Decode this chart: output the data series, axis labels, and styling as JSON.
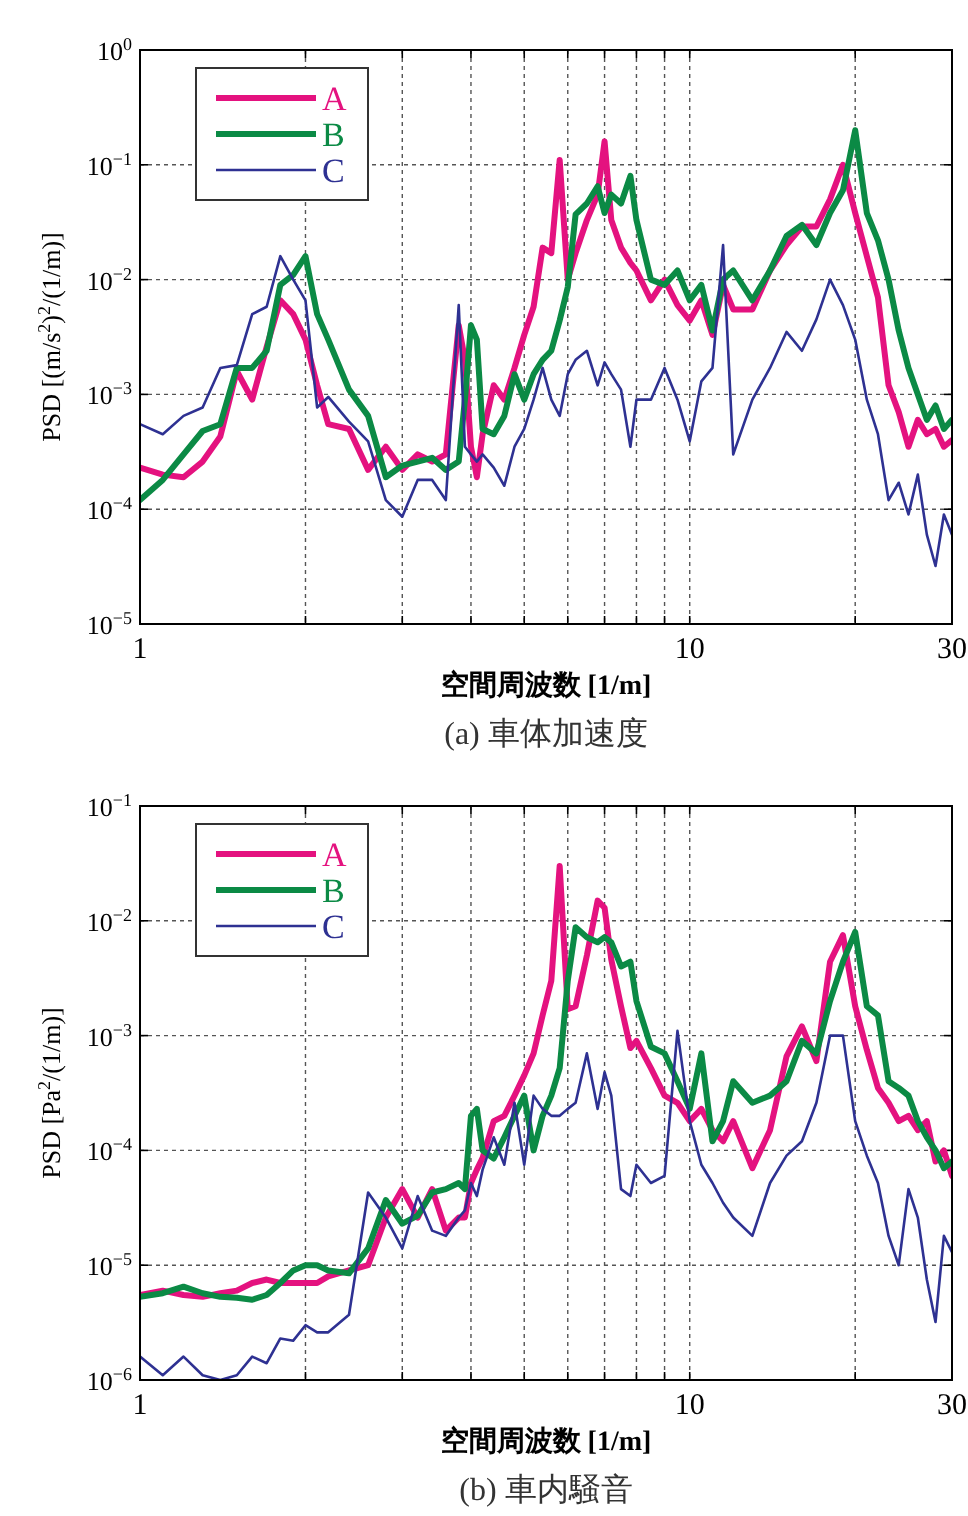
{
  "chart_data": [
    {
      "type": "line",
      "title": "(a) 車体加速度",
      "xlabel": "空間周波数 [1/m]",
      "ylabel": "PSD [(m/s$^{2}$)$^{2}$/(1/m)]",
      "log": "xy",
      "grid": true,
      "legend": "top left",
      "xlim": [
        1,
        30
      ],
      "ylim": [
        1e-05,
        1
      ],
      "xticks": [
        1,
        {
          "value": 2,
          "label": null
        },
        {
          "value": 3,
          "label": null
        },
        {
          "value": 4,
          "label": null
        },
        {
          "value": 5,
          "label": null
        },
        {
          "value": 6,
          "label": null
        },
        {
          "value": 7,
          "label": null
        },
        {
          "value": 8,
          "label": null
        },
        {
          "value": 9,
          "label": null
        },
        10,
        {
          "value": 20,
          "label": null
        },
        30
      ],
      "yticks": [
        {
          "value": 1e-05,
          "label": "10$^{−5}$"
        },
        {
          "value": 0.0001,
          "label": "10$^{−4}$"
        },
        {
          "value": 0.001,
          "label": "10$^{−3}$"
        },
        {
          "value": 0.01,
          "label": "10$^{−2}$"
        },
        {
          "value": 0.1,
          "label": "10$^{−1}$"
        },
        {
          "value": 1,
          "label": "10$^{0}$"
        }
      ],
      "x": [
        1,
        1.1,
        1.2,
        1.3,
        1.4,
        1.5,
        1.6,
        1.7,
        1.8,
        1.9,
        2,
        2.1,
        2.2,
        2.4,
        2.6,
        2.8,
        3,
        3.2,
        3.4,
        3.6,
        3.8,
        3.9,
        4,
        4.1,
        4.2,
        4.4,
        4.6,
        4.8,
        5,
        5.2,
        5.4,
        5.6,
        5.8,
        6,
        6.2,
        6.5,
        6.8,
        7,
        7.2,
        7.5,
        7.8,
        8,
        8.5,
        9,
        9.5,
        10,
        10.5,
        11,
        11.5,
        12,
        13,
        14,
        15,
        16,
        17,
        18,
        19,
        20,
        21,
        22,
        23,
        24,
        25,
        26,
        27,
        28,
        29,
        30
      ],
      "series": [
        {
          "name": "A",
          "color": "#e4127f",
          "values": [
            0.00023,
            0.0002,
            0.00019,
            0.00026,
            0.00043,
            0.0016,
            0.0009,
            0.0026,
            0.0066,
            0.005,
            0.003,
            0.0012,
            0.00055,
            0.0005,
            0.00022,
            0.00035,
            0.00022,
            0.0003,
            0.00026,
            0.0003,
            0.004,
            0.002,
            0.00035,
            0.00019,
            0.00045,
            0.0012,
            0.0009,
            0.0017,
            0.0033,
            0.0058,
            0.019,
            0.017,
            0.11,
            0.01,
            0.017,
            0.033,
            0.055,
            0.16,
            0.033,
            0.019,
            0.014,
            0.012,
            0.0066,
            0.01,
            0.006,
            0.0044,
            0.0066,
            0.0033,
            0.009,
            0.0055,
            0.0055,
            0.012,
            0.02,
            0.029,
            0.029,
            0.05,
            0.1,
            0.038,
            0.016,
            0.007,
            0.0012,
            0.0007,
            0.00035,
            0.0006,
            0.00045,
            0.0005,
            0.00035,
            0.0004
          ]
        },
        {
          "name": "B",
          "color": "#0b8a45",
          "values": [
            0.00012,
            0.00018,
            0.0003,
            0.00048,
            0.00055,
            0.0017,
            0.0017,
            0.0024,
            0.009,
            0.011,
            0.016,
            0.005,
            0.003,
            0.0011,
            0.00065,
            0.00019,
            0.00024,
            0.00026,
            0.00028,
            0.00022,
            0.00026,
            0.0009,
            0.004,
            0.003,
            0.0005,
            0.00045,
            0.00065,
            0.0015,
            0.0009,
            0.0015,
            0.002,
            0.0024,
            0.0044,
            0.0086,
            0.037,
            0.046,
            0.065,
            0.038,
            0.055,
            0.046,
            0.08,
            0.033,
            0.01,
            0.009,
            0.012,
            0.0066,
            0.009,
            0.0036,
            0.01,
            0.012,
            0.0066,
            0.012,
            0.024,
            0.03,
            0.02,
            0.038,
            0.06,
            0.2,
            0.038,
            0.022,
            0.01,
            0.0036,
            0.0017,
            0.001,
            0.0006,
            0.0008,
            0.0005,
            0.0006
          ]
        },
        {
          "name": "C",
          "color": "#2e3192",
          "values": [
            0.00055,
            0.00045,
            0.00065,
            0.00077,
            0.0017,
            0.0018,
            0.005,
            0.0058,
            0.016,
            0.01,
            0.0066,
            0.00077,
            0.00095,
            0.00058,
            0.00039,
            0.00012,
            8.6e-05,
            0.00018,
            0.00018,
            0.00012,
            0.006,
            0.00035,
            0.0003,
            0.00026,
            0.0003,
            0.00023,
            0.00016,
            0.00035,
            0.0005,
            0.0009,
            0.0017,
            0.0009,
            0.00065,
            0.0015,
            0.002,
            0.0024,
            0.0012,
            0.0019,
            0.0015,
            0.0011,
            0.00035,
            0.0009,
            0.0009,
            0.0017,
            0.0009,
            0.00039,
            0.0013,
            0.0017,
            0.02,
            0.0003,
            0.0009,
            0.0017,
            0.0035,
            0.0024,
            0.0045,
            0.01,
            0.006,
            0.003,
            0.0009,
            0.00045,
            0.00012,
            0.00017,
            9e-05,
            0.0002,
            6e-05,
            3.2e-05,
            9e-05,
            6e-05
          ]
        }
      ]
    },
    {
      "type": "line",
      "title": "(b) 車内騒音",
      "xlabel": "空間周波数 [1/m]",
      "ylabel": "PSD [Pa$^{2}$/(1/m)]",
      "log": "xy",
      "grid": true,
      "legend": "top left",
      "xlim": [
        1,
        30
      ],
      "ylim": [
        1e-06,
        0.1
      ],
      "xticks": [
        1,
        {
          "value": 2,
          "label": null
        },
        {
          "value": 3,
          "label": null
        },
        {
          "value": 4,
          "label": null
        },
        {
          "value": 5,
          "label": null
        },
        {
          "value": 6,
          "label": null
        },
        {
          "value": 7,
          "label": null
        },
        {
          "value": 8,
          "label": null
        },
        {
          "value": 9,
          "label": null
        },
        10,
        {
          "value": 20,
          "label": null
        },
        30
      ],
      "yticks": [
        {
          "value": 1e-06,
          "label": "10$^{−6}$"
        },
        {
          "value": 1e-05,
          "label": "10$^{−5}$"
        },
        {
          "value": 0.0001,
          "label": "10$^{−4}$"
        },
        {
          "value": 0.001,
          "label": "10$^{−3}$"
        },
        {
          "value": 0.01,
          "label": "10$^{−2}$"
        },
        {
          "value": 0.1,
          "label": "10$^{−1}$"
        }
      ],
      "x": [
        1,
        1.1,
        1.2,
        1.3,
        1.4,
        1.5,
        1.6,
        1.7,
        1.8,
        1.9,
        2,
        2.1,
        2.2,
        2.4,
        2.6,
        2.8,
        3,
        3.2,
        3.4,
        3.6,
        3.8,
        3.9,
        4,
        4.1,
        4.2,
        4.4,
        4.6,
        4.8,
        5,
        5.2,
        5.4,
        5.6,
        5.8,
        6,
        6.2,
        6.5,
        6.8,
        7,
        7.2,
        7.5,
        7.8,
        8,
        8.5,
        9,
        9.5,
        10,
        10.5,
        11,
        11.5,
        12,
        13,
        14,
        15,
        16,
        17,
        18,
        19,
        20,
        21,
        22,
        23,
        24,
        25,
        26,
        27,
        28,
        29,
        30
      ],
      "series": [
        {
          "name": "A",
          "color": "#e4127f",
          "values": [
            5.5e-06,
            6e-06,
            5.5e-06,
            5.3e-06,
            5.7e-06,
            6e-06,
            7e-06,
            7.5e-06,
            7e-06,
            7e-06,
            7e-06,
            7e-06,
            8e-06,
            9e-06,
            1e-05,
            2.6e-05,
            4.6e-05,
            2.6e-05,
            4.6e-05,
            2e-05,
            2.6e-05,
            2.6e-05,
            5.2e-05,
            6.8e-05,
            8.6e-05,
            0.00018,
            0.0002,
            0.0003,
            0.00045,
            0.0007,
            0.0015,
            0.003,
            0.03,
            0.0017,
            0.0018,
            0.005,
            0.015,
            0.013,
            0.0046,
            0.0018,
            0.00078,
            0.0009,
            0.00052,
            0.0003,
            0.00026,
            0.00018,
            0.00023,
            0.00015,
            0.00012,
            0.00018,
            7e-05,
            0.00015,
            0.00066,
            0.0012,
            0.0006,
            0.0044,
            0.0075,
            0.0018,
            0.00075,
            0.00035,
            0.00026,
            0.00018,
            0.0002,
            0.00015,
            0.00018,
            8e-05,
            0.0001,
            6e-05
          ]
        },
        {
          "name": "B",
          "color": "#0b8a45",
          "values": [
            5.3e-06,
            5.7e-06,
            6.5e-06,
            5.7e-06,
            5.3e-06,
            5.2e-06,
            5e-06,
            5.5e-06,
            7e-06,
            9e-06,
            1e-05,
            1e-05,
            9e-06,
            8.5e-06,
            1.4e-05,
            3.7e-05,
            2.3e-05,
            2.7e-05,
            4.3e-05,
            4.6e-05,
            5.2e-05,
            4.6e-05,
            0.0002,
            0.00023,
            0.0001,
            8.5e-05,
            0.00013,
            0.0002,
            0.0003,
            0.0001,
            0.0002,
            0.0003,
            0.00052,
            0.003,
            0.0088,
            0.0072,
            0.0065,
            0.0072,
            0.0065,
            0.004,
            0.0044,
            0.002,
            0.0008,
            0.0007,
            0.0004,
            0.00023,
            0.0007,
            0.00012,
            0.00018,
            0.0004,
            0.00026,
            0.0003,
            0.0004,
            0.0009,
            0.0007,
            0.002,
            0.0044,
            0.008,
            0.0018,
            0.0015,
            0.0004,
            0.00035,
            0.0003,
            0.00018,
            0.00013,
            0.0001,
            7e-05,
            8e-05
          ]
        },
        {
          "name": "C",
          "color": "#2e3192",
          "values": [
            1.6e-06,
            1.1e-06,
            1.6e-06,
            1.1e-06,
            1e-06,
            1.1e-06,
            1.6e-06,
            1.4e-06,
            2.3e-06,
            2.2e-06,
            3e-06,
            2.6e-06,
            2.6e-06,
            3.7e-06,
            4.3e-05,
            2.6e-05,
            1.4e-05,
            4e-05,
            2e-05,
            1.8e-05,
            2.6e-05,
            3e-05,
            5.2e-05,
            4e-05,
            6.8e-05,
            0.00013,
            7.5e-05,
            0.00026,
            7.5e-05,
            0.0003,
            0.00023,
            0.0002,
            0.0002,
            0.00023,
            0.00026,
            0.0007,
            0.00023,
            0.00048,
            0.0003,
            4.6e-05,
            4e-05,
            7.5e-05,
            5.2e-05,
            6e-05,
            0.0011,
            0.00018,
            7.5e-05,
            5.2e-05,
            3.5e-05,
            2.6e-05,
            1.8e-05,
            5.2e-05,
            9e-05,
            0.00012,
            0.00026,
            0.001,
            0.001,
            0.00018,
            9e-05,
            5.2e-05,
            1.8e-05,
            1e-05,
            4.6e-05,
            2.6e-05,
            7.5e-06,
            3.2e-06,
            1.8e-05,
            1.3e-05
          ]
        }
      ]
    }
  ]
}
